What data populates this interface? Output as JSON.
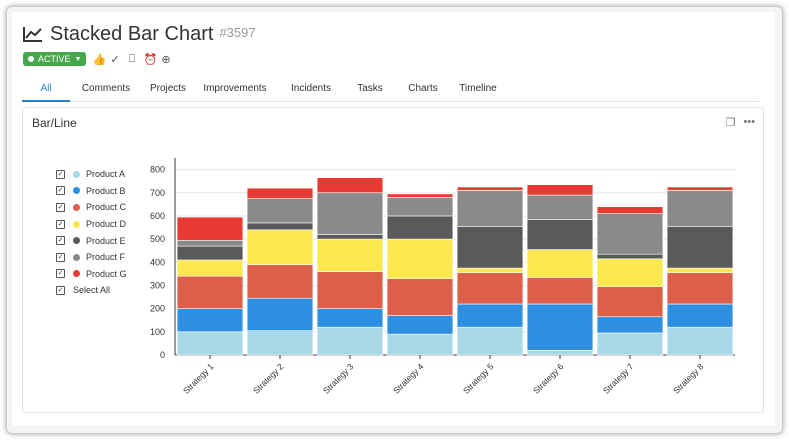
{
  "header": {
    "title": "Stacked Bar Chart",
    "item_id": "#3597",
    "status": "ACTIVE",
    "status_color": "#46a74d",
    "status_icons": [
      "thumbs-up-icon",
      "check-circle-icon",
      "bookmark-icon",
      "alarm-icon",
      "zoom-icon"
    ]
  },
  "tabs": [
    {
      "label": "All",
      "active": true
    },
    {
      "label": "Comments",
      "active": false
    },
    {
      "label": "Projects",
      "active": false
    },
    {
      "label": "Improvements",
      "active": false
    },
    {
      "label": "Incidents",
      "active": false
    },
    {
      "label": "Tasks",
      "active": false
    },
    {
      "label": "Charts",
      "active": false
    },
    {
      "label": "Timeline",
      "active": false
    }
  ],
  "panel": {
    "title": "Bar/Line",
    "tools": [
      "copy-icon",
      "more-icon"
    ]
  },
  "legend": {
    "select_all": "Select All"
  },
  "chart_data": {
    "type": "bar",
    "stacked": true,
    "categories": [
      "Strategy 1",
      "Strategy 2",
      "Strategy 3",
      "Strategy 4",
      "Strategy 5",
      "Strategy 6",
      "Strategy 7",
      "Strategy 8"
    ],
    "ylim": [
      0,
      850
    ],
    "yticks": [
      0,
      100,
      200,
      300,
      400,
      500,
      600,
      700,
      800
    ],
    "grid": true,
    "legend_position": "left",
    "series": [
      {
        "name": "Product A",
        "color": "#a8d8e8",
        "values": [
          100,
          105,
          120,
          90,
          120,
          20,
          95,
          120
        ]
      },
      {
        "name": "Product B",
        "color": "#2e8fe0",
        "values": [
          100,
          140,
          80,
          80,
          100,
          200,
          70,
          100
        ]
      },
      {
        "name": "Product C",
        "color": "#dc5f4a",
        "values": [
          140,
          145,
          160,
          160,
          135,
          115,
          130,
          135
        ]
      },
      {
        "name": "Product D",
        "color": "#fbe84f",
        "values": [
          70,
          150,
          140,
          170,
          20,
          120,
          120,
          20
        ]
      },
      {
        "name": "Product E",
        "color": "#5a5a5a",
        "values": [
          60,
          30,
          20,
          100,
          180,
          130,
          20,
          180
        ]
      },
      {
        "name": "Product F",
        "color": "#8a8a8a",
        "values": [
          25,
          105,
          180,
          80,
          155,
          105,
          175,
          155
        ]
      },
      {
        "name": "Product G",
        "color": "#e83a34",
        "values": [
          100,
          45,
          65,
          15,
          15,
          45,
          30,
          15
        ]
      }
    ]
  }
}
